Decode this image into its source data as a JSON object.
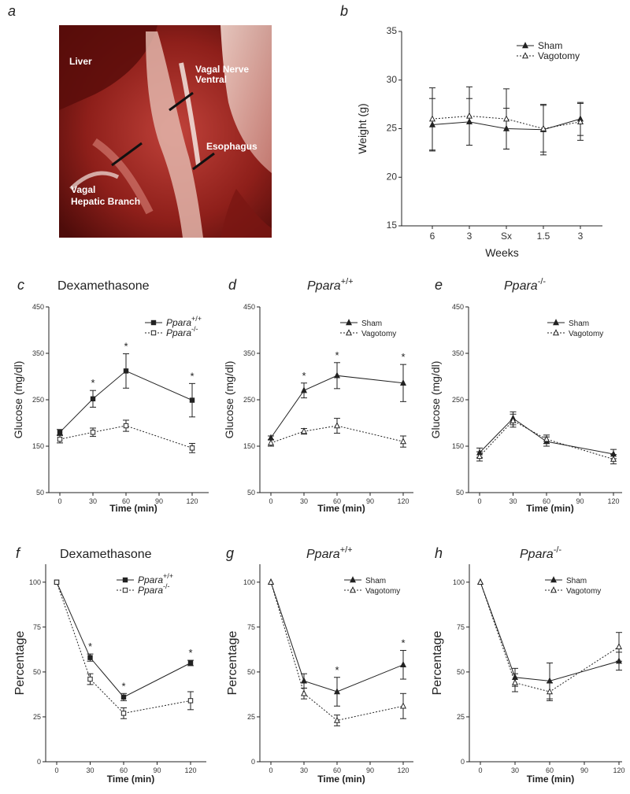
{
  "figure": {
    "panel_labels": [
      "a",
      "b",
      "c",
      "d",
      "e",
      "f",
      "g",
      "h"
    ],
    "titles": {
      "c": "Dexamethasone",
      "d_base": "Ppara",
      "d_sup": "+/+",
      "e_base": "Ppara",
      "e_sup": "-/-",
      "f": "Dexamethasone",
      "g_base": "Ppara",
      "g_sup": "+/+",
      "h_base": "Ppara",
      "h_sup": "-/-"
    },
    "photo_labels": {
      "liver": "Liver",
      "vagal_nerve": "Vagal Nerve",
      "ventral": "Ventral",
      "esophagus": "Esophagus",
      "vagal": "Vagal",
      "hepatic_branch": "Hepatic Branch"
    },
    "colors": {
      "line": "#222222",
      "photo_bg": "#6a1210",
      "photo_tissue": "#b8322a",
      "photo_pale": "#e8c8bf"
    }
  },
  "chart_data": [
    {
      "panel": "b",
      "type": "line",
      "x": [
        "6",
        "3",
        "Sx",
        "1.5",
        "3"
      ],
      "xlabel": "Weeks",
      "ylabel": "Weight (g)",
      "ylim": [
        15,
        35
      ],
      "yticks": [
        15,
        20,
        25,
        30,
        35
      ],
      "legend": [
        "Sham",
        "Vagotomy"
      ],
      "series": [
        {
          "name": "Sham",
          "marker": "filled-triangle",
          "style": "solid",
          "values": [
            25.4,
            25.7,
            25.0,
            24.9,
            26.0
          ],
          "err": [
            2.7,
            2.4,
            2.1,
            2.6,
            1.7
          ]
        },
        {
          "name": "Vagotomy",
          "marker": "open-triangle",
          "style": "dotted",
          "values": [
            26.0,
            26.3,
            26.0,
            25.0,
            25.7
          ],
          "err": [
            3.2,
            3.0,
            3.1,
            2.4,
            1.9
          ]
        }
      ]
    },
    {
      "panel": "c",
      "type": "line",
      "x": [
        0,
        30,
        60,
        90,
        120
      ],
      "xticks": [
        "0",
        "30",
        "60",
        "90",
        "120"
      ],
      "xlabel": "Time (min)",
      "ylabel": "Glucose (mg/dl)",
      "ylim": [
        50,
        450
      ],
      "yticks": [
        "50",
        "150",
        "250",
        "350",
        "450"
      ],
      "series": [
        {
          "name": "Ppara",
          "sup": "+/+",
          "marker": "filled-square",
          "style": "solid",
          "x": [
            0,
            30,
            60,
            120
          ],
          "values": [
            180,
            252,
            312,
            249
          ],
          "err": [
            6,
            18,
            37,
            36
          ]
        },
        {
          "name": "Ppara",
          "sup": "-/-",
          "marker": "open-square",
          "style": "dotted",
          "x": [
            0,
            30,
            60,
            120
          ],
          "values": [
            165,
            180,
            194,
            146
          ],
          "err": [
            8,
            9,
            12,
            10
          ]
        }
      ],
      "annotations": [
        "*",
        "*",
        "*"
      ]
    },
    {
      "panel": "d",
      "type": "line",
      "x": [
        0,
        30,
        60,
        90,
        120
      ],
      "xticks": [
        "0",
        "30",
        "60",
        "90",
        "120"
      ],
      "xlabel": "Time (min)",
      "ylabel": "Glucose (mg/dl)",
      "ylim": [
        50,
        450
      ],
      "yticks": [
        "50",
        "150",
        "250",
        "350",
        "450"
      ],
      "legend": [
        "Sham",
        "Vagotomy"
      ],
      "series": [
        {
          "name": "Sham",
          "marker": "filled-triangle",
          "style": "solid",
          "x": [
            0,
            30,
            60,
            120
          ],
          "values": [
            168,
            270,
            302,
            286
          ],
          "err": [
            4,
            16,
            28,
            40
          ]
        },
        {
          "name": "Vagotomy",
          "marker": "open-triangle",
          "style": "dotted",
          "x": [
            0,
            30,
            60,
            120
          ],
          "values": [
            157,
            182,
            194,
            160
          ],
          "err": [
            7,
            6,
            16,
            12
          ]
        }
      ],
      "annotations": [
        "*",
        "*",
        "*"
      ]
    },
    {
      "panel": "e",
      "type": "line",
      "x": [
        0,
        30,
        60,
        90,
        120
      ],
      "xticks": [
        "0",
        "30",
        "60",
        "90",
        "120"
      ],
      "xlabel": "Time (min)",
      "ylabel": "Glucose (mg/dl)",
      "ylim": [
        50,
        450
      ],
      "yticks": [
        "50",
        "150",
        "250",
        "350",
        "450"
      ],
      "legend": [
        "Sham",
        "Vagotomy"
      ],
      "series": [
        {
          "name": "Sham",
          "marker": "filled-triangle",
          "style": "solid",
          "x": [
            0,
            30,
            60,
            120
          ],
          "values": [
            136,
            210,
            160,
            133
          ],
          "err": [
            10,
            14,
            10,
            10
          ]
        },
        {
          "name": "Vagotomy",
          "marker": "open-triangle",
          "style": "dotted",
          "x": [
            0,
            30,
            60,
            120
          ],
          "values": [
            128,
            205,
            165,
            122
          ],
          "err": [
            10,
            14,
            9,
            10
          ]
        }
      ]
    },
    {
      "panel": "f",
      "type": "line",
      "x": [
        0,
        30,
        60,
        90,
        120
      ],
      "xticks": [
        "0",
        "30",
        "60",
        "90",
        "120"
      ],
      "xlabel": "Time (min)",
      "ylabel": "Percentage",
      "ylim": [
        0,
        110
      ],
      "yticks": [
        "0",
        "25",
        "50",
        "75",
        "100"
      ],
      "series": [
        {
          "name": "Ppara",
          "sup": "+/+",
          "marker": "filled-square",
          "style": "solid",
          "x": [
            0,
            30,
            60,
            120
          ],
          "values": [
            100,
            58,
            36,
            55
          ],
          "err": [
            0,
            2,
            2,
            1.5
          ]
        },
        {
          "name": "Ppara",
          "sup": "-/-",
          "marker": "open-square",
          "style": "dotted",
          "x": [
            0,
            30,
            60,
            120
          ],
          "values": [
            100,
            46,
            27,
            34
          ],
          "err": [
            0,
            3,
            3,
            5
          ]
        }
      ],
      "annotations": [
        "*",
        "*",
        "*"
      ]
    },
    {
      "panel": "g",
      "type": "line",
      "x": [
        0,
        30,
        60,
        90,
        120
      ],
      "xticks": [
        "0",
        "30",
        "60",
        "90",
        "120"
      ],
      "xlabel": "Time (min)",
      "ylabel": "Percentage",
      "ylim": [
        0,
        110
      ],
      "yticks": [
        "0",
        "25",
        "50",
        "75",
        "100"
      ],
      "legend": [
        "Sham",
        "Vagotomy"
      ],
      "series": [
        {
          "name": "Sham",
          "marker": "filled-triangle",
          "style": "solid",
          "x": [
            0,
            30,
            60,
            120
          ],
          "values": [
            100,
            45,
            39,
            54
          ],
          "err": [
            0,
            4,
            8,
            8
          ]
        },
        {
          "name": "Vagotomy",
          "marker": "open-triangle",
          "style": "dotted",
          "x": [
            0,
            30,
            60,
            120
          ],
          "values": [
            100,
            38,
            23,
            31
          ],
          "err": [
            0,
            3,
            3,
            7
          ]
        }
      ],
      "annotations": [
        "*",
        "*"
      ]
    },
    {
      "panel": "h",
      "type": "line",
      "x": [
        0,
        30,
        60,
        90,
        120
      ],
      "xticks": [
        "0",
        "30",
        "60",
        "90",
        "120"
      ],
      "xlabel": "Time (min)",
      "ylabel": "Percentage",
      "ylim": [
        0,
        110
      ],
      "yticks": [
        "0",
        "25",
        "50",
        "75",
        "100"
      ],
      "legend": [
        "Sham",
        "Vagotomy"
      ],
      "series": [
        {
          "name": "Sham",
          "marker": "filled-triangle",
          "style": "solid",
          "x": [
            0,
            30,
            60,
            120
          ],
          "values": [
            100,
            47,
            45,
            56
          ],
          "err": [
            0,
            5,
            10,
            5
          ]
        },
        {
          "name": "Vagotomy",
          "marker": "open-triangle",
          "style": "dotted",
          "x": [
            0,
            30,
            60,
            120
          ],
          "values": [
            100,
            44,
            39,
            64
          ],
          "err": [
            0,
            5,
            5,
            8
          ]
        }
      ]
    }
  ]
}
